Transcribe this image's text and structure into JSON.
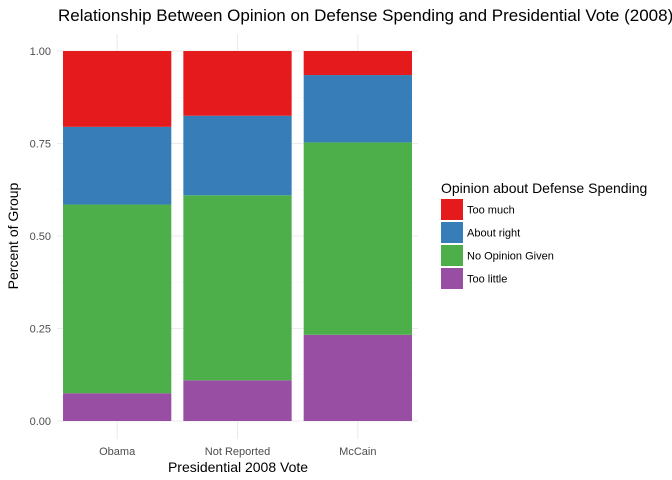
{
  "chart_data": {
    "type": "bar",
    "stacked": true,
    "title": "Relationship Between Opinion on Defense Spending and Presidential Vote (2008)",
    "xlabel": "Presidential 2008 Vote",
    "ylabel": "Percent of Group",
    "categories": [
      "Obama",
      "Not Reported",
      "McCain"
    ],
    "ylim": [
      0,
      1
    ],
    "yticks": [
      "0.00",
      "0.25",
      "0.50",
      "0.75",
      "1.00"
    ],
    "legend_title": "Opinion about Defense Spending",
    "legend_position": "right",
    "grid": true,
    "series": [
      {
        "name": "Too little",
        "color": "#984EA3",
        "values": [
          0.075,
          0.11,
          0.233
        ]
      },
      {
        "name": "No Opinion Given",
        "color": "#4DAF4A",
        "values": [
          0.51,
          0.5,
          0.52
        ]
      },
      {
        "name": "About right",
        "color": "#377EB8",
        "values": [
          0.21,
          0.215,
          0.182
        ]
      },
      {
        "name": "Too much",
        "color": "#E41A1C",
        "values": [
          0.205,
          0.175,
          0.065
        ]
      }
    ],
    "legend_order": [
      "Too much",
      "About right",
      "No Opinion Given",
      "Too little"
    ]
  }
}
